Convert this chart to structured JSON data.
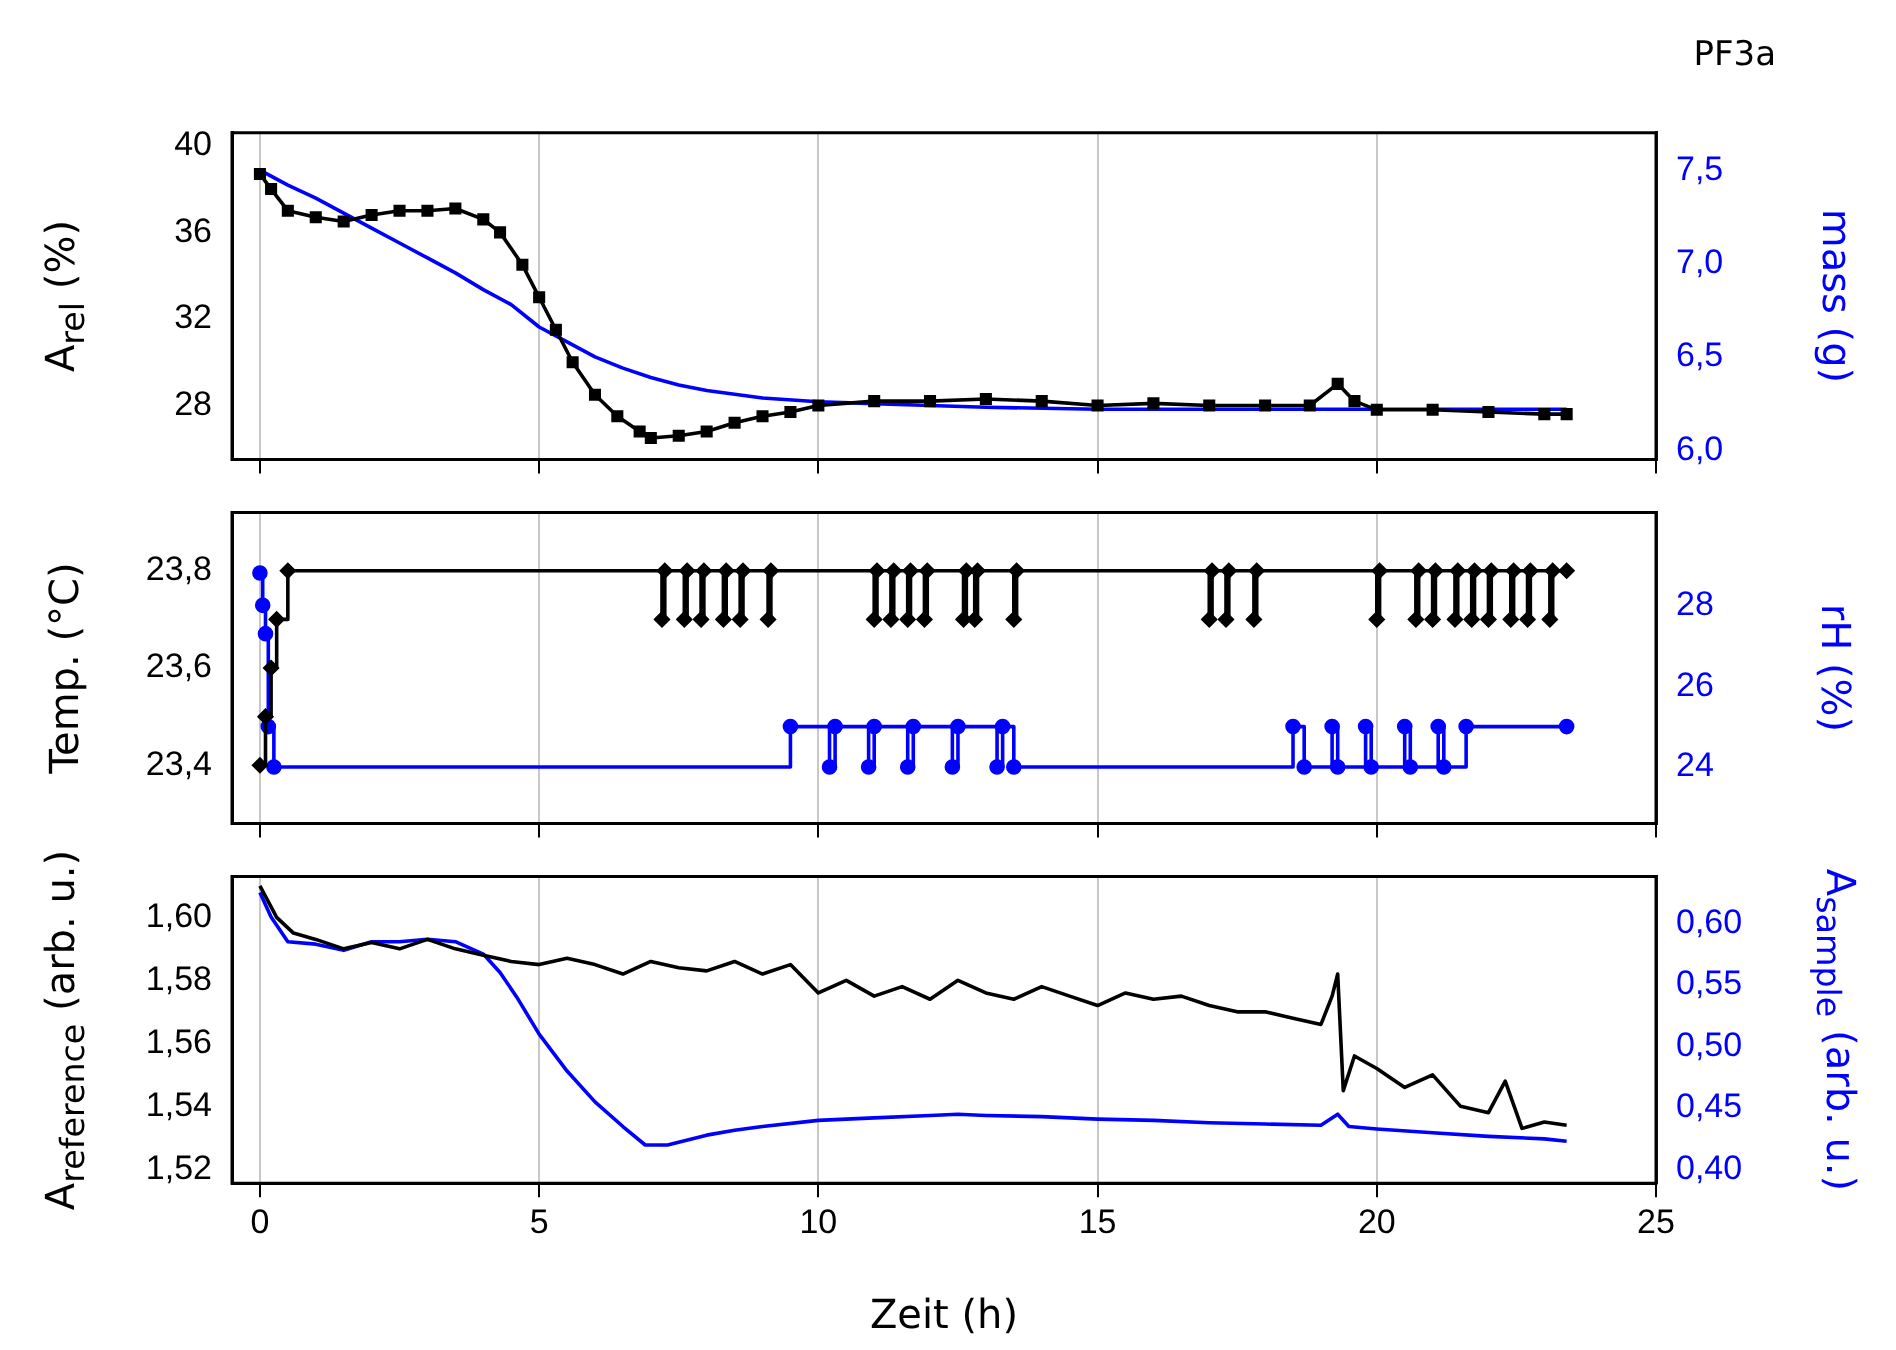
{
  "chart_data": [
    {
      "type": "line",
      "title": "PF3a",
      "ylabel": "A$_{rel}$  (%)",
      "y2label": "mass (g)",
      "xlim": [
        -0.5,
        25
      ],
      "xticks": [
        0,
        5,
        10,
        15,
        20,
        25
      ],
      "ylim": [
        25.5,
        40.6
      ],
      "yticks": [
        28,
        32,
        36,
        40
      ],
      "y2lim": [
        5.95,
        7.7
      ],
      "y2ticks": [
        {
          "value": 6.0,
          "label": "6,0"
        },
        {
          "value": 6.5,
          "label": "6,5"
        },
        {
          "value": 7.0,
          "label": "7,0"
        },
        {
          "value": 7.5,
          "label": "7,5"
        }
      ],
      "grid": "x",
      "legend": false,
      "tick_labels": "y",
      "series": [
        {
          "color": "#000000",
          "marker": "square",
          "x": [
            0,
            0.2,
            0.5,
            1,
            1.5,
            2,
            2.5,
            3,
            3.5,
            4,
            4.3,
            4.7,
            5,
            5.3,
            5.6,
            6,
            6.4,
            6.8,
            7,
            7.5,
            8,
            8.5,
            9,
            9.5,
            10,
            11,
            12,
            13,
            14,
            15,
            16,
            17,
            18,
            18.8,
            19.3,
            19.6,
            20,
            21,
            22,
            23,
            23.4
          ],
          "values": [
            38.7,
            38,
            37,
            36.7,
            36.5,
            36.8,
            37,
            37,
            37.1,
            36.6,
            36,
            34.5,
            33,
            31.5,
            30,
            28.5,
            27.5,
            26.8,
            26.5,
            26.6,
            26.8,
            27.2,
            27.5,
            27.7,
            28,
            28.2,
            28.2,
            28.3,
            28.2,
            28,
            28.1,
            28,
            28,
            28,
            29,
            28.2,
            27.8,
            27.8,
            27.7,
            27.6,
            27.6
          ]
        },
        {
          "color": "#0000ff",
          "marker": "none",
          "axis": "y2",
          "x": [
            0,
            0.5,
            1,
            1.5,
            2,
            2.5,
            3,
            3.5,
            4,
            4.5,
            5,
            5.5,
            6,
            6.5,
            7,
            7.5,
            8,
            9,
            10,
            11,
            12,
            13,
            15,
            17,
            20,
            23.4
          ],
          "values": [
            7.5,
            7.42,
            7.35,
            7.27,
            7.19,
            7.11,
            7.03,
            6.95,
            6.86,
            6.78,
            6.66,
            6.58,
            6.5,
            6.44,
            6.39,
            6.35,
            6.32,
            6.28,
            6.26,
            6.25,
            6.24,
            6.23,
            6.22,
            6.22,
            6.22,
            6.22
          ]
        }
      ]
    },
    {
      "type": "step",
      "ylabel": "Temp. (°C)",
      "y2label": "rH (%)",
      "xlim": [
        -0.5,
        25
      ],
      "xticks": [
        0,
        5,
        10,
        15,
        20,
        25
      ],
      "ylim": [
        23.28,
        23.92
      ],
      "yticks": [
        {
          "value": 23.4,
          "label": "23,4"
        },
        {
          "value": 23.6,
          "label": "23,6"
        },
        {
          "value": 23.8,
          "label": "23,8"
        }
      ],
      "y2lim": [
        22.6,
        30.3
      ],
      "y2ticks": [
        24,
        26,
        28
      ],
      "grid": "x",
      "legend": false,
      "tick_labels": "y",
      "series": [
        {
          "color": "#000000",
          "marker": "diamond",
          "x": [
            0,
            0.1,
            0.2,
            0.3,
            0.5,
            7.2,
            7.25,
            7.6,
            7.65,
            7.9,
            7.95,
            8.3,
            8.35,
            8.6,
            8.65,
            9.1,
            9.15,
            11,
            11.05,
            11.3,
            11.35,
            11.6,
            11.65,
            11.9,
            11.95,
            12.6,
            12.65,
            12.8,
            12.85,
            13.5,
            13.55,
            17,
            17.05,
            17.3,
            17.35,
            17.8,
            17.85,
            20,
            20.05,
            20.7,
            20.75,
            21,
            21.05,
            21.4,
            21.45,
            21.7,
            21.75,
            22,
            22.05,
            22.4,
            22.45,
            22.7,
            22.75,
            23.1,
            23.15,
            23.4
          ],
          "values": [
            23.4,
            23.5,
            23.6,
            23.7,
            23.8,
            23.7,
            23.8,
            23.7,
            23.8,
            23.7,
            23.8,
            23.7,
            23.8,
            23.7,
            23.8,
            23.7,
            23.8,
            23.7,
            23.8,
            23.7,
            23.8,
            23.7,
            23.8,
            23.7,
            23.8,
            23.7,
            23.8,
            23.7,
            23.8,
            23.7,
            23.8,
            23.7,
            23.8,
            23.7,
            23.8,
            23.7,
            23.8,
            23.7,
            23.8,
            23.7,
            23.8,
            23.7,
            23.8,
            23.7,
            23.8,
            23.7,
            23.8,
            23.7,
            23.8,
            23.7,
            23.8,
            23.7,
            23.8,
            23.7,
            23.8,
            23.8
          ]
        },
        {
          "color": "#0000ff",
          "marker": "circle",
          "axis": "y2",
          "x": [
            0,
            0.05,
            0.1,
            0.15,
            0.25,
            9.5,
            10.2,
            10.3,
            10.9,
            11,
            11.6,
            11.7,
            12.4,
            12.5,
            13.2,
            13.3,
            13.5,
            18.5,
            18.7,
            19.2,
            19.3,
            19.8,
            19.9,
            20.5,
            20.6,
            21.1,
            21.2,
            21.6,
            23.4
          ],
          "values": [
            28.8,
            28,
            27.3,
            25,
            24,
            25,
            24,
            25,
            24,
            25,
            24,
            25,
            24,
            25,
            24,
            25,
            24,
            25,
            24,
            25,
            24,
            25,
            24,
            25,
            24,
            25,
            24,
            25,
            25
          ]
        }
      ]
    },
    {
      "type": "line",
      "ylabel": "A$_{reference}$ (arb. u.)",
      "y2label": "A$_{sample}$ (arb. u.)",
      "xlabel": "Zeit (h)",
      "xlim": [
        -0.5,
        25
      ],
      "xticks": [
        0,
        5,
        10,
        15,
        20,
        25
      ],
      "ylim": [
        1.5156,
        1.613
      ],
      "yticks": [
        {
          "value": 1.52,
          "label": "1,52"
        },
        {
          "value": 1.54,
          "label": "1,54"
        },
        {
          "value": 1.56,
          "label": "1,56"
        },
        {
          "value": 1.58,
          "label": "1,58"
        },
        {
          "value": 1.6,
          "label": "1,60"
        }
      ],
      "y2lim": [
        0.389,
        0.638
      ],
      "y2ticks": [
        {
          "value": 0.4,
          "label": "0,40"
        },
        {
          "value": 0.45,
          "label": "0,45"
        },
        {
          "value": 0.5,
          "label": "0,50"
        },
        {
          "value": 0.55,
          "label": "0,55"
        },
        {
          "value": 0.6,
          "label": "0,60"
        }
      ],
      "grid": "x",
      "legend": false,
      "series": [
        {
          "color": "#000000",
          "x": [
            0,
            0.3,
            0.6,
            1,
            1.5,
            2,
            2.5,
            3,
            3.5,
            4,
            4.5,
            5,
            5.5,
            6,
            6.5,
            7,
            7.5,
            8,
            8.5,
            9,
            9.5,
            10,
            10.5,
            11,
            11.5,
            12,
            12.5,
            13,
            13.5,
            14,
            14.5,
            15,
            15.5,
            16,
            16.5,
            17,
            17.5,
            18,
            18.5,
            19,
            19.2,
            19.3,
            19.4,
            19.6,
            20,
            20.5,
            21,
            21.5,
            22,
            22.3,
            22.6,
            23,
            23.4
          ],
          "values": [
            1.61,
            1.6,
            1.595,
            1.593,
            1.59,
            1.592,
            1.59,
            1.593,
            1.59,
            1.588,
            1.586,
            1.585,
            1.587,
            1.585,
            1.582,
            1.586,
            1.584,
            1.583,
            1.586,
            1.582,
            1.585,
            1.576,
            1.58,
            1.575,
            1.578,
            1.574,
            1.58,
            1.576,
            1.574,
            1.578,
            1.575,
            1.572,
            1.576,
            1.574,
            1.575,
            1.572,
            1.57,
            1.57,
            1.568,
            1.566,
            1.575,
            1.582,
            1.545,
            1.556,
            1.552,
            1.546,
            1.55,
            1.54,
            1.538,
            1.548,
            1.533,
            1.535,
            1.534
          ]
        },
        {
          "color": "#0000ff",
          "axis": "y2",
          "x": [
            0,
            0.2,
            0.5,
            1,
            1.5,
            2,
            2.5,
            3,
            3.5,
            4,
            4.3,
            4.6,
            5,
            5.5,
            6,
            6.5,
            6.9,
            7.3,
            8,
            8.5,
            9,
            10,
            11,
            12,
            12.5,
            13,
            14,
            15,
            16,
            17,
            18,
            19,
            19.3,
            19.5,
            20,
            21,
            22,
            23,
            23.4
          ],
          "values": [
            0.625,
            0.605,
            0.585,
            0.583,
            0.578,
            0.585,
            0.585,
            0.587,
            0.585,
            0.575,
            0.56,
            0.54,
            0.51,
            0.48,
            0.455,
            0.435,
            0.42,
            0.42,
            0.428,
            0.432,
            0.435,
            0.44,
            0.442,
            0.444,
            0.445,
            0.444,
            0.443,
            0.441,
            0.44,
            0.438,
            0.437,
            0.436,
            0.445,
            0.435,
            0.433,
            0.43,
            0.427,
            0.425,
            0.423
          ]
        }
      ]
    }
  ]
}
